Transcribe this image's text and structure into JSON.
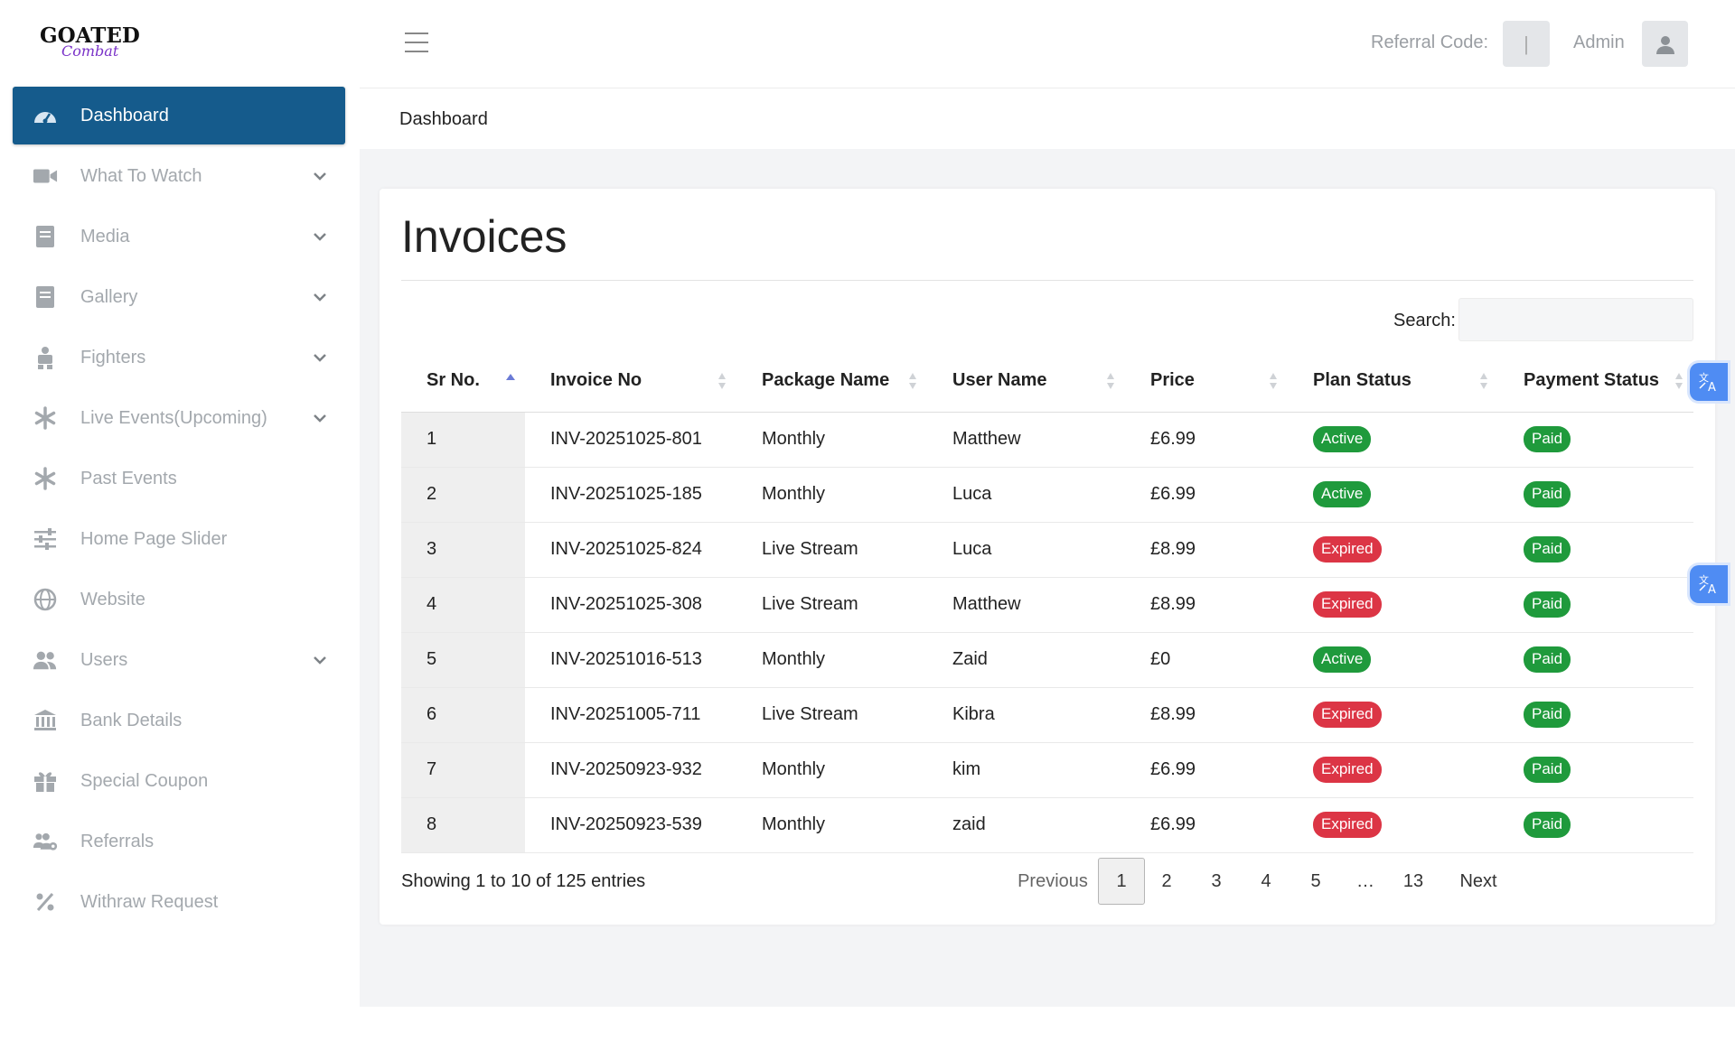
{
  "brand": {
    "name": "GOATED",
    "tagline": "Combat"
  },
  "sidebar": {
    "items": [
      {
        "label": "Dashboard",
        "icon": "gauge-icon",
        "active": true,
        "has_submenu": false
      },
      {
        "label": "What To Watch",
        "icon": "video-camera-icon",
        "has_submenu": true
      },
      {
        "label": "Media",
        "icon": "book-icon",
        "has_submenu": true
      },
      {
        "label": "Gallery",
        "icon": "book-icon",
        "has_submenu": true
      },
      {
        "label": "Fighters",
        "icon": "fighter-icon",
        "has_submenu": true
      },
      {
        "label": "Live Events(Upcoming)",
        "icon": "asterisk-icon",
        "has_submenu": true
      },
      {
        "label": "Past Events",
        "icon": "asterisk-icon",
        "has_submenu": false
      },
      {
        "label": "Home Page Slider",
        "icon": "sliders-icon",
        "has_submenu": false
      },
      {
        "label": "Website",
        "icon": "globe-icon",
        "has_submenu": false
      },
      {
        "label": "Users",
        "icon": "users-icon",
        "has_submenu": true
      },
      {
        "label": "Bank Details",
        "icon": "bank-icon",
        "has_submenu": false
      },
      {
        "label": "Special Coupon",
        "icon": "gift-icon",
        "has_submenu": false
      },
      {
        "label": "Referrals",
        "icon": "users-cog-icon",
        "has_submenu": false
      },
      {
        "label": "Withraw Request",
        "icon": "percent-icon",
        "has_submenu": false
      }
    ]
  },
  "header": {
    "referral_label": "Referral Code:",
    "referral_value": "|",
    "admin_label": "Admin"
  },
  "breadcrumb": "Dashboard",
  "card": {
    "title": "Invoices",
    "search_label": "Search:",
    "search_value": ""
  },
  "table": {
    "columns": [
      "Sr No.",
      "Invoice No",
      "Package Name",
      "User Name",
      "Price",
      "Plan Status",
      "Payment Status"
    ],
    "rows": [
      {
        "sr": "1",
        "invoice": "INV-20251025-801",
        "package": "Monthly",
        "user": "Matthew",
        "price": "£6.99",
        "plan_status": "Active",
        "payment_status": "Paid"
      },
      {
        "sr": "2",
        "invoice": "INV-20251025-185",
        "package": "Monthly",
        "user": "Luca",
        "price": "£6.99",
        "plan_status": "Active",
        "payment_status": "Paid"
      },
      {
        "sr": "3",
        "invoice": "INV-20251025-824",
        "package": "Live Stream",
        "user": "Luca",
        "price": "£8.99",
        "plan_status": "Expired",
        "payment_status": "Paid"
      },
      {
        "sr": "4",
        "invoice": "INV-20251025-308",
        "package": "Live Stream",
        "user": "Matthew",
        "price": "£8.99",
        "plan_status": "Expired",
        "payment_status": "Paid"
      },
      {
        "sr": "5",
        "invoice": "INV-20251016-513",
        "package": "Monthly",
        "user": "Zaid",
        "price": "£0",
        "plan_status": "Active",
        "payment_status": "Paid"
      },
      {
        "sr": "6",
        "invoice": "INV-20251005-711",
        "package": "Live Stream",
        "user": "Kibra",
        "price": "£8.99",
        "plan_status": "Expired",
        "payment_status": "Paid"
      },
      {
        "sr": "7",
        "invoice": "INV-20250923-932",
        "package": "Monthly",
        "user": "kim",
        "price": "£6.99",
        "plan_status": "Expired",
        "payment_status": "Paid"
      },
      {
        "sr": "8",
        "invoice": "INV-20250923-539",
        "package": "Monthly",
        "user": "zaid",
        "price": "£6.99",
        "plan_status": "Expired",
        "payment_status": "Paid"
      }
    ]
  },
  "footer": {
    "showing": "Showing 1 to 10 of 125 entries",
    "pagination": {
      "previous": "Previous",
      "pages": [
        "1",
        "2",
        "3",
        "4",
        "5",
        "…",
        "13"
      ],
      "current": "1",
      "next": "Next"
    }
  },
  "colors": {
    "sidebar_active": "#155b8c",
    "status_active": "#1f9a3c",
    "status_expired": "#dc3545",
    "status_paid": "#1f9a3c",
    "translate_button": "#4f8cf3"
  }
}
